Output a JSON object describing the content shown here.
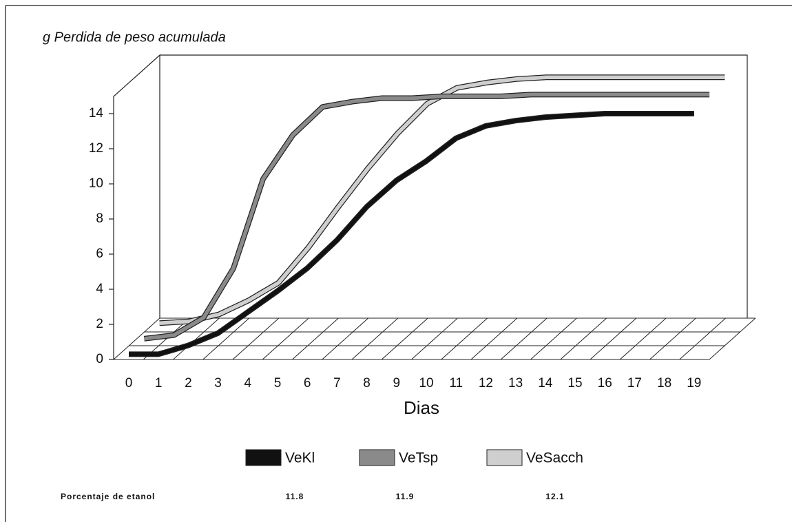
{
  "chart_data": {
    "type": "line3d",
    "title": "g Perdida de peso acumulada",
    "xlabel": "Dias",
    "x": [
      0,
      1,
      2,
      3,
      4,
      5,
      6,
      7,
      8,
      9,
      10,
      11,
      12,
      13,
      14,
      15,
      16,
      17,
      18,
      19
    ],
    "ylim": [
      0,
      14
    ],
    "yticks": [
      0,
      2,
      4,
      6,
      8,
      10,
      12,
      14
    ],
    "series": [
      {
        "name": "VeKl",
        "color": "#111111",
        "values": [
          0.3,
          0.3,
          0.8,
          1.5,
          2.7,
          3.9,
          5.2,
          6.8,
          8.7,
          10.2,
          11.3,
          12.6,
          13.3,
          13.6,
          13.8,
          13.9,
          14,
          14,
          14,
          14
        ]
      },
      {
        "name": "VeTsp",
        "color": "#8a8a8a",
        "values": [
          0.4,
          0.6,
          1.6,
          4.4,
          9.5,
          12.0,
          13.6,
          13.9,
          14.1,
          14.1,
          14.2,
          14.2,
          14.2,
          14.3,
          14.3,
          14.3,
          14.3,
          14.3,
          14.3,
          14.3
        ]
      },
      {
        "name": "VeSacch",
        "color": "#cfcfcf",
        "values": [
          0.5,
          0.6,
          1.0,
          1.8,
          2.8,
          4.8,
          7.1,
          9.3,
          11.3,
          13.0,
          13.9,
          14.2,
          14.4,
          14.5,
          14.5,
          14.5,
          14.5,
          14.5,
          14.5,
          14.5
        ]
      }
    ],
    "ethanol": {
      "label": "Porcentaje de etanol",
      "values": [
        11.8,
        11.9,
        12.1
      ]
    }
  }
}
